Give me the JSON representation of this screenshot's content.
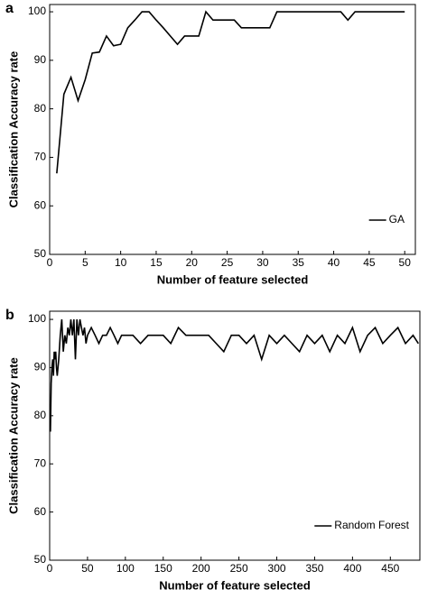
{
  "chart_data": [
    {
      "type": "line",
      "panel": "a",
      "xlabel": "Number of feature selected",
      "ylabel": "Classification Accuracy rate",
      "x": [
        1,
        2,
        3,
        4,
        5,
        6,
        7,
        8,
        9,
        10,
        11,
        12,
        13,
        14,
        15,
        16,
        17,
        18,
        19,
        20,
        21,
        22,
        23,
        24,
        25,
        26,
        27,
        28,
        29,
        30,
        31,
        32,
        33,
        34,
        35,
        36,
        37,
        38,
        39,
        40,
        41,
        42,
        43,
        44,
        45,
        46,
        47,
        48,
        49,
        50
      ],
      "series": [
        {
          "name": "GA",
          "color": "#000000",
          "values": [
            66.7,
            83,
            86.5,
            81.7,
            86,
            91.5,
            91.7,
            95,
            93,
            93.3,
            96.7,
            98.3,
            100,
            100,
            98.3,
            96.7,
            95,
            93.3,
            95,
            95,
            95,
            100,
            98.3,
            98.3,
            98.3,
            98.3,
            96.7,
            96.7,
            96.7,
            96.7,
            96.7,
            100,
            100,
            100,
            100,
            100,
            100,
            100,
            100,
            100,
            100,
            98.3,
            100,
            100,
            100,
            100,
            100,
            100,
            100,
            100
          ]
        }
      ],
      "xlim": [
        0,
        51.5
      ],
      "xticks": [
        0,
        5,
        10,
        15,
        20,
        25,
        30,
        35,
        40,
        45,
        50
      ],
      "ylim": [
        50,
        101.5
      ],
      "yticks": [
        50,
        60,
        70,
        80,
        90,
        100
      ],
      "grid": false,
      "legend": "lower right"
    },
    {
      "type": "line",
      "panel": "b",
      "xlabel": "Number of feature selected",
      "ylabel": "Classification Accuracy rate",
      "x": [
        1,
        2,
        3,
        4,
        5,
        6,
        7,
        8,
        9,
        10,
        12,
        14,
        16,
        18,
        20,
        22,
        24,
        26,
        28,
        30,
        32,
        34,
        36,
        38,
        40,
        42,
        44,
        46,
        48,
        50,
        55,
        60,
        65,
        70,
        75,
        80,
        85,
        90,
        95,
        100,
        110,
        120,
        130,
        140,
        150,
        160,
        170,
        180,
        190,
        200,
        210,
        220,
        230,
        240,
        250,
        260,
        270,
        280,
        290,
        300,
        310,
        320,
        330,
        340,
        350,
        360,
        370,
        380,
        390,
        400,
        410,
        420,
        430,
        440,
        450,
        460,
        470,
        480,
        487
      ],
      "series": [
        {
          "name": "Random Forest",
          "color": "#000000",
          "values": [
            76.7,
            86.7,
            90,
            91.7,
            88.3,
            93.3,
            91.7,
            93.3,
            90,
            88.3,
            91.7,
            96.7,
            100,
            93.3,
            96.7,
            95,
            98.3,
            96.7,
            100,
            96.7,
            100,
            91.7,
            100,
            96.7,
            100,
            98.3,
            96.7,
            98.3,
            95,
            96.7,
            98.3,
            96.7,
            95,
            96.7,
            96.7,
            98.3,
            96.7,
            95,
            96.7,
            96.7,
            96.7,
            95,
            96.7,
            96.7,
            96.7,
            95,
            98.3,
            96.7,
            96.7,
            96.7,
            96.7,
            95,
            93.3,
            96.7,
            96.7,
            95,
            96.7,
            91.7,
            96.7,
            95,
            96.7,
            95,
            93.3,
            96.7,
            95,
            96.7,
            93.3,
            96.7,
            95,
            98.3,
            93.3,
            96.7,
            98.3,
            95,
            96.7,
            98.3,
            95,
            96.7,
            95
          ]
        }
      ],
      "xlim": [
        0,
        489
      ],
      "xticks": [
        0,
        50,
        100,
        150,
        200,
        250,
        300,
        350,
        400,
        450
      ],
      "ylim": [
        50,
        101.7
      ],
      "yticks": [
        50,
        60,
        70,
        80,
        90,
        100
      ],
      "grid": false,
      "legend": "lower right"
    }
  ]
}
